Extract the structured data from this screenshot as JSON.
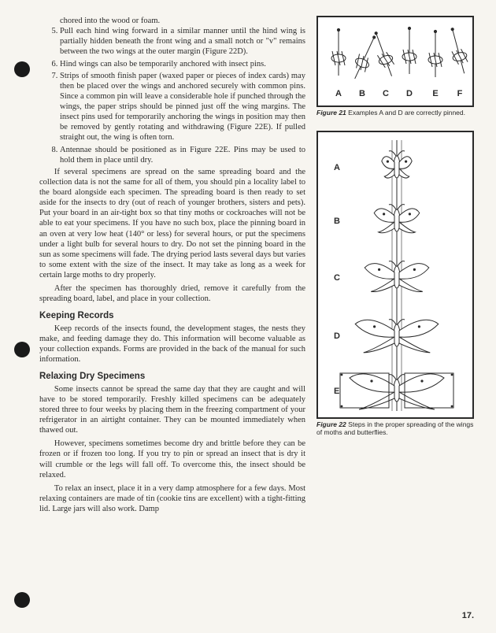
{
  "list_start": 5,
  "cont_line": "chored into the wood or foam.",
  "items": [
    "Pull each hind wing forward in a similar manner until the hind wing is partially hidden beneath the front wing and a small notch or \"v\" remains between the two wings at the outer margin (Figure 22D).",
    "Hind wings can also be temporarily anchored with insect pins.",
    "Strips of smooth finish paper (waxed paper or pieces of index cards) may then be placed over the wings and anchored securely with common pins. Since a common pin will leave a considerable hole if punched through the wings, the paper strips should be pinned just off the wing margins. The insect pins used for temporarily anchoring the wings in position may then be removed by gently rotating and withdrawing (Figure 22E). If pulled straight out, the wing is often torn.",
    "Antennae should be positioned as in Figure 22E. Pins may be used to hold them in place until dry."
  ],
  "para_a": "If several specimens are spread on the same spreading board and the collection data is not the same for all of them, you should pin a locality label to the board alongside each specimen. The spreading board is then ready to set aside for the insects to dry (out of reach of younger brothers, sisters and pets). Put your board in an air-tight box so that tiny moths or cockroaches will not be able to eat your specimens. If you have no such box, place the pinning board in an oven at very low heat (140° or less) for several hours, or put the specimens under a light bulb for several hours to dry. Do not set the pinning board in the sun as some specimens will fade. The drying period lasts several days but varies to some extent with the size of the insect. It may take as long as a week for certain large moths to dry properly.",
  "para_b": "After the specimen has thoroughly dried, remove it carefully from the spreading board, label, and place in your collection.",
  "h_records": "Keeping Records",
  "para_records": "Keep records of the insects found, the development stages, the nests they make, and feeding damage they do. This information will become valuable as your collection expands. Forms are provided in the back of the manual for such information.",
  "h_relax": "Relaxing Dry Specimens",
  "para_relax1": "Some insects cannot be spread the same day that they are caught and will have to be stored temporarily. Freshly killed specimens can be adequately stored three to four weeks by placing them in the freezing compartment of your refrigerator in an airtight container. They can be mounted immediately when thawed out.",
  "para_relax2": "However, specimens sometimes become dry and brittle before they can be frozen or if frozen too long. If you try to pin or spread an insect that is dry it will crumble or the legs will fall off. To overcome this, the insect should be relaxed.",
  "para_relax3": "To relax an insect, place it in a very damp atmosphere for a few days. Most relaxing containers are made of tin (cookie tins are excellent) with a tight-fitting lid. Large jars will also work. Damp",
  "fig21_caption_pre": "Figure 21",
  "fig21_caption": " Examples A and D are correctly pinned.",
  "fig22_caption_pre": "Figure 22",
  "fig22_caption": " Steps in the proper spreading of the wings of moths and butterflies.",
  "fig21_labels": [
    "A",
    "B",
    "C",
    "D",
    "E",
    "F"
  ],
  "fig22_labels": [
    "A",
    "B",
    "C",
    "D",
    "E"
  ],
  "page_number": "17.",
  "colors": {
    "ink": "#2a2a2a",
    "paper": "#f7f5f0"
  }
}
